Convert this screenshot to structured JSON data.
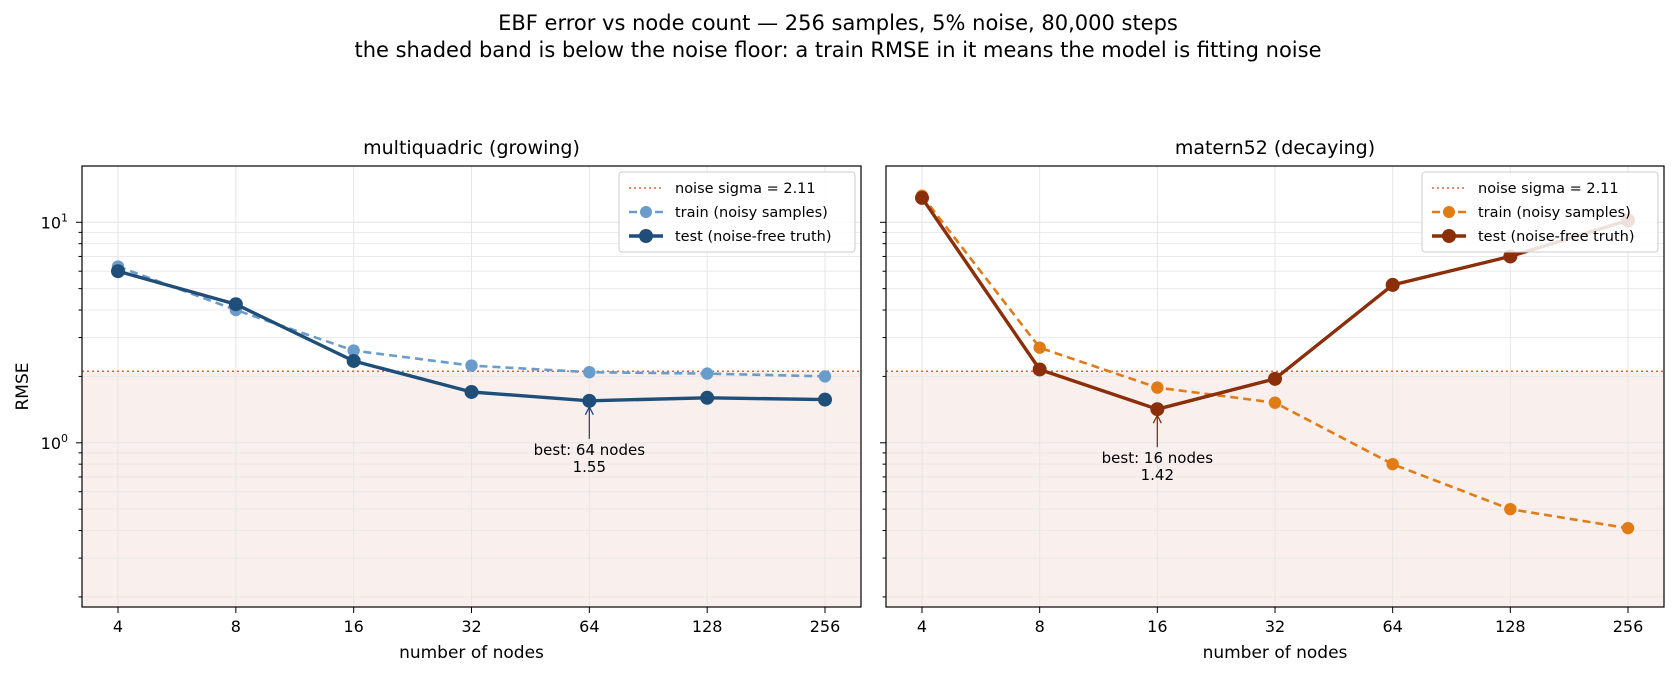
{
  "figure": {
    "title_line1": "EBF error vs node count  —  256 samples, 5% noise, 80,000 steps",
    "title_line2": "the shaded band is below the noise floor: a train RMSE in it means the model is fitting noise"
  },
  "colors": {
    "noise_line": "#d9643a",
    "band": "#f9efed",
    "grid": "#e6e6e6",
    "mq_train": "#6a9ccb",
    "mq_test": "#1f4e79",
    "mt_train": "#e07b16",
    "mt_test": "#8b2e0a"
  },
  "chart_data": [
    {
      "type": "line",
      "title": "multiquadric (growing)",
      "xlabel": "number of nodes",
      "ylabel": "RMSE",
      "xscale": "log2",
      "yscale": "log",
      "x": [
        4,
        8,
        16,
        32,
        64,
        128,
        256
      ],
      "xtick_labels": [
        "4",
        "8",
        "16",
        "32",
        "64",
        "128",
        "256"
      ],
      "ytick_labels": [
        "10^0",
        "10^1"
      ],
      "ylim": [
        0.18,
        18
      ],
      "grid": true,
      "legend_position": "top-right",
      "noise_sigma": 2.11,
      "noise_label": "noise sigma = 2.11",
      "series": [
        {
          "name": "train (noisy samples)",
          "style": "dashed",
          "values": [
            6.3,
            4.0,
            2.62,
            2.24,
            2.09,
            2.06,
            2.0
          ]
        },
        {
          "name": "test (noise-free truth)",
          "style": "solid",
          "values": [
            6.0,
            4.25,
            2.35,
            1.7,
            1.55,
            1.6,
            1.57
          ]
        }
      ],
      "annotation": {
        "x": 64,
        "y": 1.55,
        "line1": "best: 64 nodes",
        "line2": "1.55"
      }
    },
    {
      "type": "line",
      "title": "matern52 (decaying)",
      "xlabel": "number of nodes",
      "ylabel": "",
      "xscale": "log2",
      "yscale": "log",
      "x": [
        4,
        8,
        16,
        32,
        64,
        128,
        256
      ],
      "xtick_labels": [
        "4",
        "8",
        "16",
        "32",
        "64",
        "128",
        "256"
      ],
      "ylim": [
        0.18,
        18
      ],
      "grid": true,
      "legend_position": "top-right",
      "noise_sigma": 2.11,
      "noise_label": "noise sigma = 2.11",
      "series": [
        {
          "name": "train (noisy samples)",
          "style": "dashed",
          "values": [
            13.2,
            2.7,
            1.78,
            1.52,
            0.8,
            0.5,
            0.41
          ]
        },
        {
          "name": "test (noise-free truth)",
          "style": "solid",
          "values": [
            12.9,
            2.15,
            1.42,
            1.95,
            5.2,
            7.0,
            10.2
          ]
        }
      ],
      "annotation": {
        "x": 16,
        "y": 1.42,
        "line1": "best: 16 nodes",
        "line2": "1.42"
      }
    }
  ]
}
